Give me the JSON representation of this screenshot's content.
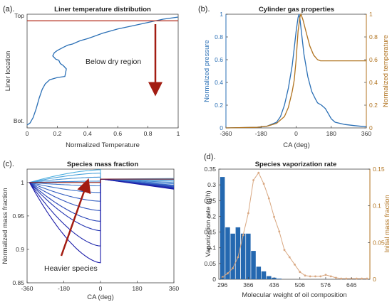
{
  "chart_data": [
    {
      "id": "a",
      "panel_label": "(a).",
      "type": "line",
      "title": "Liner temperature distribution",
      "xlabel": "Normalized Temperature",
      "ylabel": "Liner location",
      "xlim": [
        0,
        1
      ],
      "xticks": [
        "0",
        "0.2",
        "0.4",
        "0.6",
        "0.8",
        "1"
      ],
      "ytick_labels": [
        "Top",
        "Bot."
      ],
      "annotation": "Below dry region",
      "colors": {
        "blue": "#2a6fb5",
        "red": "#b83a2a",
        "arrow": "#a31c12"
      },
      "series": [
        {
          "color": "blue",
          "points": [
            [
              0.0,
              0.0
            ],
            [
              0.02,
              0.02
            ],
            [
              0.04,
              0.07
            ],
            [
              0.06,
              0.15
            ],
            [
              0.08,
              0.25
            ],
            [
              0.1,
              0.33
            ],
            [
              0.12,
              0.38
            ],
            [
              0.15,
              0.42
            ],
            [
              0.2,
              0.44
            ],
            [
              0.25,
              0.45
            ],
            [
              0.26,
              0.52
            ],
            [
              0.24,
              0.55
            ],
            [
              0.22,
              0.57
            ],
            [
              0.21,
              0.6
            ],
            [
              0.19,
              0.61
            ],
            [
              0.17,
              0.64
            ],
            [
              0.18,
              0.67
            ],
            [
              0.2,
              0.69
            ],
            [
              0.24,
              0.72
            ],
            [
              0.27,
              0.74
            ],
            [
              0.3,
              0.75
            ],
            [
              0.35,
              0.78
            ],
            [
              0.4,
              0.8
            ],
            [
              0.5,
              0.85
            ],
            [
              0.6,
              0.89
            ],
            [
              0.7,
              0.92
            ],
            [
              0.8,
              0.95
            ],
            [
              0.9,
              0.98
            ],
            [
              1.0,
              1.0
            ]
          ]
        },
        {
          "color": "red",
          "points": [
            [
              0.0,
              0.965
            ],
            [
              1.0,
              0.965
            ]
          ]
        }
      ]
    },
    {
      "id": "b",
      "panel_label": "(b).",
      "type": "line",
      "title": "Cylinder gas properties",
      "xlabel": "CA (deg)",
      "ylabel": "Normalized pressure",
      "ylabel_right": "Normalized temperature",
      "xlim": [
        -360,
        360
      ],
      "ylim": [
        0,
        1
      ],
      "xticks": [
        "-360",
        "-180",
        "0",
        "180",
        "360"
      ],
      "yticks": [
        "0",
        "0.2",
        "0.4",
        "0.6",
        "0.8",
        "1"
      ],
      "colors": {
        "pressure": "#2a6fb5",
        "temperature": "#b0721e",
        "axis_left": "#2a6fb5",
        "axis_right": "#b0721e"
      },
      "series": [
        {
          "name": "Normalized pressure",
          "color": "pressure",
          "points": [
            [
              -360,
              0
            ],
            [
              -200,
              0.005
            ],
            [
              -150,
              0.015
            ],
            [
              -100,
              0.05
            ],
            [
              -80,
              0.1
            ],
            [
              -60,
              0.2
            ],
            [
              -40,
              0.35
            ],
            [
              -20,
              0.55
            ],
            [
              -10,
              0.7
            ],
            [
              0,
              0.85
            ],
            [
              10,
              0.97
            ],
            [
              15,
              1.0
            ],
            [
              20,
              0.95
            ],
            [
              30,
              0.8
            ],
            [
              40,
              0.65
            ],
            [
              60,
              0.45
            ],
            [
              80,
              0.32
            ],
            [
              100,
              0.25
            ],
            [
              110,
              0.22
            ],
            [
              130,
              0.2
            ],
            [
              150,
              0.17
            ],
            [
              160,
              0.14
            ],
            [
              180,
              0.08
            ],
            [
              200,
              0.05
            ],
            [
              250,
              0.03
            ],
            [
              300,
              0.02
            ],
            [
              360,
              0.01
            ]
          ]
        },
        {
          "name": "Normalized temperature",
          "color": "temperature",
          "points": [
            [
              -360,
              0
            ],
            [
              -200,
              0.005
            ],
            [
              -150,
              0.015
            ],
            [
              -100,
              0.04
            ],
            [
              -60,
              0.1
            ],
            [
              -40,
              0.18
            ],
            [
              -20,
              0.32
            ],
            [
              -10,
              0.42
            ],
            [
              0,
              0.6
            ],
            [
              10,
              0.85
            ],
            [
              20,
              0.98
            ],
            [
              25,
              1.0
            ],
            [
              35,
              0.95
            ],
            [
              50,
              0.85
            ],
            [
              70,
              0.72
            ],
            [
              90,
              0.64
            ],
            [
              110,
              0.6
            ],
            [
              125,
              0.59
            ],
            [
              360,
              0.59
            ]
          ]
        }
      ]
    },
    {
      "id": "c",
      "panel_label": "(c).",
      "type": "line",
      "title": "Species mass fraction",
      "xlabel": "CA (deg)",
      "ylabel": "Normalized mass fraction",
      "xlim": [
        -360,
        360
      ],
      "ylim": [
        0.85,
        1.02
      ],
      "xticks": [
        "-360",
        "-180",
        "0",
        "180",
        "360"
      ],
      "yticks": [
        "0.85",
        "0.9",
        "0.95",
        "1"
      ],
      "annotation": "Heavier species",
      "colors": {
        "light": "#4fb0e0",
        "heavy": "#1a1aa8",
        "baseline": "#8a1a1a",
        "arrow": "#a31c12"
      },
      "curve_minima": [
        1.019,
        1.014,
        1.008,
        1.002,
        0.995,
        0.985,
        0.972,
        0.958,
        0.942,
        0.928,
        0.905,
        0.88
      ],
      "post_tdc_endpoints": [
        1.006,
        1.004,
        1.002,
        1.0,
        0.998,
        0.996,
        0.995,
        0.994,
        0.993,
        0.992,
        0.991,
        0.99
      ]
    },
    {
      "id": "d",
      "panel_label": "(d).",
      "type": "bar",
      "title": "Species vaporization rate",
      "xlabel": "Molecular weight of oil composition",
      "ylabel": "Vaporization rate (g/h)",
      "ylabel_right": "Initial mass fraction",
      "xlim": [
        286,
        696
      ],
      "ylim": [
        0,
        0.35
      ],
      "ylim_right": [
        0,
        0.15
      ],
      "xticks": [
        "296",
        "366",
        "436",
        "506",
        "576",
        "646"
      ],
      "yticks": [
        "0",
        "0.05",
        "0.1",
        "0.15",
        "0.2",
        "0.25",
        "0.3",
        "0.35"
      ],
      "yticks_right": [
        "0",
        "0.05",
        "0.1",
        "0.15"
      ],
      "colors": {
        "bars": "#2468b0",
        "line": "#d9a882",
        "axis_right": "#b0721e"
      },
      "categories": [
        296,
        310,
        324,
        338,
        352,
        366,
        380,
        394,
        408,
        422,
        436,
        450
      ],
      "values": [
        0.325,
        0.165,
        0.145,
        0.165,
        0.145,
        0.145,
        0.09,
        0.04,
        0.025,
        0.01,
        0.005,
        0.002
      ],
      "series": [
        {
          "name": "Initial mass fraction",
          "x": [
            296,
            310,
            324,
            338,
            352,
            366,
            380,
            394,
            408,
            422,
            436,
            450,
            464,
            478,
            492,
            506,
            520,
            534,
            548,
            562,
            576,
            590,
            604,
            618,
            632,
            646,
            660,
            674,
            688
          ],
          "values": [
            0.003,
            0.008,
            0.015,
            0.03,
            0.06,
            0.09,
            0.135,
            0.145,
            0.13,
            0.11,
            0.085,
            0.065,
            0.04,
            0.03,
            0.02,
            0.01,
            0.005,
            0.004,
            0.004,
            0.004,
            0.006,
            0.004,
            0.002,
            0.001,
            0.001,
            0.001,
            0.001,
            0.001,
            0.001
          ]
        }
      ]
    }
  ]
}
